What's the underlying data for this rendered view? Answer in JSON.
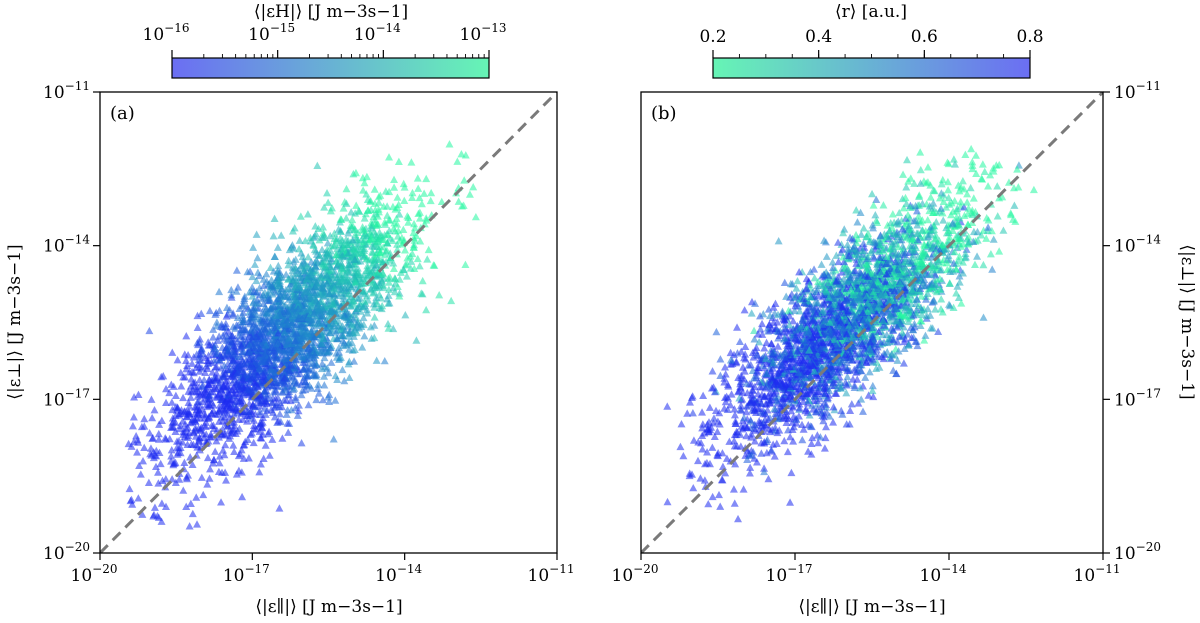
{
  "chart_data": [
    {
      "type": "scatter",
      "panel_label": "(a)",
      "scale": "log",
      "marker": "triangle",
      "xlim": [
        1e-20,
        1e-11
      ],
      "ylim": [
        1e-20,
        1e-11
      ],
      "xticks": [
        {
          "base": "10",
          "exp": "−20",
          "val": -20
        },
        {
          "base": "10",
          "exp": "−17",
          "val": -17
        },
        {
          "base": "10",
          "exp": "−14",
          "val": -14
        },
        {
          "base": "10",
          "exp": "−11",
          "val": -11
        }
      ],
      "yticks": [
        {
          "base": "10",
          "exp": "−20",
          "val": -20
        },
        {
          "base": "10",
          "exp": "−17",
          "val": -17
        },
        {
          "base": "10",
          "exp": "−14",
          "val": -14
        },
        {
          "base": "10",
          "exp": "−11",
          "val": -11
        }
      ],
      "xlabel": "⟨|ε∥|⟩ [J m−3s−1]",
      "ylabel": "⟨|ε⊥|⟩ [J m−3s−1]",
      "reference_line": "y = x (dashed grey)",
      "color_variable": "⟨|εH|⟩",
      "cloud_summary": {
        "center_log_x": -16.3,
        "center_log_y": -15.7,
        "x_range_log": [
          -19.5,
          -12.5
        ],
        "y_range_log": [
          -19.5,
          -12.0
        ],
        "n_points_approx": 3000
      },
      "colorbar": {
        "label": "⟨|εH|⟩ [J m−3s−1]",
        "scale": "log",
        "range": [
          1e-16,
          1e-13
        ],
        "ticks": [
          {
            "base": "10",
            "exp": "−16",
            "val": -16
          },
          {
            "base": "10",
            "exp": "−15",
            "val": -15
          },
          {
            "base": "10",
            "exp": "−14",
            "val": -14
          },
          {
            "base": "10",
            "exp": "−13",
            "val": -13
          }
        ],
        "colors": [
          "#6b6ef3",
          "#66f5b5"
        ]
      }
    },
    {
      "type": "scatter",
      "panel_label": "(b)",
      "scale": "log",
      "marker": "triangle",
      "xlim": [
        1e-20,
        1e-11
      ],
      "ylim": [
        1e-20,
        1e-11
      ],
      "xticks": [
        {
          "base": "10",
          "exp": "−20",
          "val": -20
        },
        {
          "base": "10",
          "exp": "−17",
          "val": -17
        },
        {
          "base": "10",
          "exp": "−14",
          "val": -14
        },
        {
          "base": "10",
          "exp": "−11",
          "val": -11
        }
      ],
      "yticks": [
        {
          "base": "10",
          "exp": "−20",
          "val": -20
        },
        {
          "base": "10",
          "exp": "−17",
          "val": -17
        },
        {
          "base": "10",
          "exp": "−14",
          "val": -14
        },
        {
          "base": "10",
          "exp": "−11",
          "val": -11
        }
      ],
      "xlabel": "⟨|ε∥|⟩ [J m−3s−1]",
      "ylabel": "⟨|ε⊥|⟩ [J m−3s−1]",
      "reference_line": "y = x (dashed grey)",
      "color_variable": "⟨r⟩",
      "cloud_summary": {
        "center_log_x": -16.0,
        "center_log_y": -15.5,
        "x_range_log": [
          -19.5,
          -12.3
        ],
        "y_range_log": [
          -19.5,
          -12.0
        ],
        "n_points_approx": 3000
      },
      "colorbar": {
        "label": "⟨r⟩ [a.u.]",
        "scale": "linear",
        "range": [
          0.2,
          0.8
        ],
        "ticks": [
          {
            "label": "0.2",
            "val": 0.2
          },
          {
            "label": "0.4",
            "val": 0.4
          },
          {
            "label": "0.6",
            "val": 0.6
          },
          {
            "label": "0.8",
            "val": 0.8
          }
        ],
        "colors": [
          "#66f5b5",
          "#6b6ef3"
        ]
      }
    }
  ]
}
